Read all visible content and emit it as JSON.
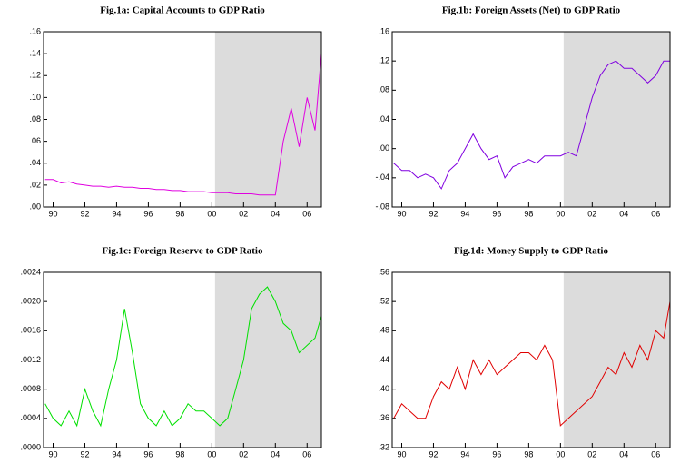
{
  "chart_data": [
    {
      "type": "line",
      "title": "Fig.1a: Capital Accounts to GDP Ratio",
      "x": [
        1989.5,
        1990,
        1990.5,
        1991,
        1991.5,
        1992,
        1992.5,
        1993,
        1993.5,
        1994,
        1994.5,
        1995,
        1995.5,
        1996,
        1996.5,
        1997,
        1997.5,
        1998,
        1998.5,
        1999,
        1999.5,
        2000,
        2000.5,
        2001,
        2001.5,
        2002,
        2002.5,
        2003,
        2003.5,
        2004,
        2004.5,
        2005,
        2005.5,
        2006,
        2006.5,
        2006.9
      ],
      "series": [
        {
          "color": "#e000e0",
          "values": [
            0.025,
            0.025,
            0.022,
            0.023,
            0.021,
            0.02,
            0.019,
            0.019,
            0.018,
            0.019,
            0.018,
            0.018,
            0.017,
            0.017,
            0.016,
            0.016,
            0.015,
            0.015,
            0.014,
            0.014,
            0.014,
            0.013,
            0.013,
            0.013,
            0.012,
            0.012,
            0.012,
            0.011,
            0.011,
            0.011,
            0.06,
            0.09,
            0.055,
            0.1,
            0.07,
            0.14
          ]
        }
      ],
      "xlim": [
        1989.4,
        2006.9
      ],
      "shade": [
        2000.2,
        2006.9
      ],
      "xticks": [
        {
          "value": 1990,
          "label": "90"
        },
        {
          "value": 1992,
          "label": "92"
        },
        {
          "value": 1994,
          "label": "94"
        },
        {
          "value": 1996,
          "label": "96"
        },
        {
          "value": 1998,
          "label": "98"
        },
        {
          "value": 2000,
          "label": "00"
        },
        {
          "value": 2002,
          "label": "02"
        },
        {
          "value": 2004,
          "label": "04"
        },
        {
          "value": 2006,
          "label": "06"
        }
      ],
      "ylim": [
        0,
        0.16
      ],
      "yticks": [
        {
          "value": 0,
          "label": ".00"
        },
        {
          "value": 0.02,
          "label": ".02"
        },
        {
          "value": 0.04,
          "label": ".04"
        },
        {
          "value": 0.06,
          "label": ".06"
        },
        {
          "value": 0.08,
          "label": ".08"
        },
        {
          "value": 0.1,
          "label": ".10"
        },
        {
          "value": 0.12,
          "label": ".12"
        },
        {
          "value": 0.14,
          "label": ".14"
        },
        {
          "value": 0.16,
          "label": ".16"
        }
      ]
    },
    {
      "type": "line",
      "title": "Fig.1b: Foreign Assets (Net) to GDP Ratio",
      "x": [
        1989.5,
        1990,
        1990.5,
        1991,
        1991.5,
        1992,
        1992.5,
        1993,
        1993.5,
        1994,
        1994.5,
        1995,
        1995.5,
        1996,
        1996.5,
        1997,
        1997.5,
        1998,
        1998.5,
        1999,
        1999.5,
        2000,
        2000.5,
        2001,
        2001.5,
        2002,
        2002.5,
        2003,
        2003.5,
        2004,
        2004.5,
        2005,
        2005.5,
        2006,
        2006.5,
        2006.9
      ],
      "series": [
        {
          "color": "#8000e0",
          "values": [
            -0.02,
            -0.03,
            -0.03,
            -0.04,
            -0.035,
            -0.04,
            -0.055,
            -0.03,
            -0.02,
            0.0,
            0.02,
            0.0,
            -0.015,
            -0.01,
            -0.04,
            -0.025,
            -0.02,
            -0.015,
            -0.02,
            -0.01,
            -0.01,
            -0.01,
            -0.005,
            -0.01,
            0.03,
            0.07,
            0.1,
            0.115,
            0.12,
            0.11,
            0.11,
            0.1,
            0.09,
            0.1,
            0.12,
            0.12
          ]
        }
      ],
      "xlim": [
        1989.4,
        2006.9
      ],
      "shade": [
        2000.2,
        2006.9
      ],
      "xticks": [
        {
          "value": 1990,
          "label": "90"
        },
        {
          "value": 1992,
          "label": "92"
        },
        {
          "value": 1994,
          "label": "94"
        },
        {
          "value": 1996,
          "label": "96"
        },
        {
          "value": 1998,
          "label": "98"
        },
        {
          "value": 2000,
          "label": "00"
        },
        {
          "value": 2002,
          "label": "02"
        },
        {
          "value": 2004,
          "label": "04"
        },
        {
          "value": 2006,
          "label": "06"
        }
      ],
      "ylim": [
        -0.08,
        0.16
      ],
      "yticks": [
        {
          "value": -0.08,
          "label": "-.08"
        },
        {
          "value": -0.04,
          "label": "-.04"
        },
        {
          "value": 0,
          "label": ".00"
        },
        {
          "value": 0.04,
          "label": ".04"
        },
        {
          "value": 0.08,
          "label": ".08"
        },
        {
          "value": 0.12,
          "label": ".12"
        },
        {
          "value": 0.16,
          "label": ".16"
        }
      ]
    },
    {
      "type": "line",
      "title": "Fig.1c: Foreign Reserve to GDP Ratio",
      "x": [
        1989.5,
        1990,
        1990.5,
        1991,
        1991.5,
        1992,
        1992.5,
        1993,
        1993.5,
        1994,
        1994.5,
        1995,
        1995.5,
        1996,
        1996.5,
        1997,
        1997.5,
        1998,
        1998.5,
        1999,
        1999.5,
        2000,
        2000.5,
        2001,
        2001.5,
        2002,
        2002.5,
        2003,
        2003.5,
        2004,
        2004.5,
        2005,
        2005.5,
        2006,
        2006.5,
        2006.9
      ],
      "series": [
        {
          "color": "#00e000",
          "values": [
            0.0006,
            0.0004,
            0.0003,
            0.0005,
            0.0003,
            0.0008,
            0.0005,
            0.0003,
            0.0008,
            0.0012,
            0.0019,
            0.0013,
            0.0006,
            0.0004,
            0.0003,
            0.0005,
            0.0003,
            0.0004,
            0.0006,
            0.0005,
            0.0005,
            0.0004,
            0.0003,
            0.0004,
            0.0008,
            0.0012,
            0.0019,
            0.0021,
            0.0022,
            0.002,
            0.0017,
            0.0016,
            0.0013,
            0.0014,
            0.0015,
            0.0018
          ]
        }
      ],
      "xlim": [
        1989.4,
        2006.9
      ],
      "shade": [
        2000.2,
        2006.9
      ],
      "xticks": [
        {
          "value": 1990,
          "label": "90"
        },
        {
          "value": 1992,
          "label": "92"
        },
        {
          "value": 1994,
          "label": "94"
        },
        {
          "value": 1996,
          "label": "96"
        },
        {
          "value": 1998,
          "label": "98"
        },
        {
          "value": 2000,
          "label": "00"
        },
        {
          "value": 2002,
          "label": "02"
        },
        {
          "value": 2004,
          "label": "04"
        },
        {
          "value": 2006,
          "label": "06"
        }
      ],
      "ylim": [
        0,
        0.0024
      ],
      "yticks": [
        {
          "value": 0,
          "label": ".0000"
        },
        {
          "value": 0.0004,
          "label": ".0004"
        },
        {
          "value": 0.0008,
          "label": ".0008"
        },
        {
          "value": 0.0012,
          "label": ".0012"
        },
        {
          "value": 0.0016,
          "label": ".0016"
        },
        {
          "value": 0.002,
          "label": ".0020"
        },
        {
          "value": 0.0024,
          "label": ".0024"
        }
      ]
    },
    {
      "type": "line",
      "title": "Fig.1d:  Money Supply to GDP Ratio",
      "x": [
        1989.5,
        1990,
        1990.5,
        1991,
        1991.5,
        1992,
        1992.5,
        1993,
        1993.5,
        1994,
        1994.5,
        1995,
        1995.5,
        1996,
        1996.5,
        1997,
        1997.5,
        1998,
        1998.5,
        1999,
        1999.5,
        2000,
        2000.5,
        2001,
        2001.5,
        2002,
        2002.5,
        2003,
        2003.5,
        2004,
        2004.5,
        2005,
        2005.5,
        2006,
        2006.5,
        2006.9
      ],
      "series": [
        {
          "color": "#e00000",
          "values": [
            0.36,
            0.38,
            0.37,
            0.36,
            0.36,
            0.39,
            0.41,
            0.4,
            0.43,
            0.4,
            0.44,
            0.42,
            0.44,
            0.42,
            0.43,
            0.44,
            0.45,
            0.45,
            0.44,
            0.46,
            0.44,
            0.35,
            0.36,
            0.37,
            0.38,
            0.39,
            0.41,
            0.43,
            0.42,
            0.45,
            0.43,
            0.46,
            0.44,
            0.48,
            0.47,
            0.52
          ]
        }
      ],
      "xlim": [
        1989.4,
        2006.9
      ],
      "shade": [
        2000.2,
        2006.9
      ],
      "xticks": [
        {
          "value": 1990,
          "label": "90"
        },
        {
          "value": 1992,
          "label": "92"
        },
        {
          "value": 1994,
          "label": "94"
        },
        {
          "value": 1996,
          "label": "96"
        },
        {
          "value": 1998,
          "label": "98"
        },
        {
          "value": 2000,
          "label": "00"
        },
        {
          "value": 2002,
          "label": "02"
        },
        {
          "value": 2004,
          "label": "04"
        },
        {
          "value": 2006,
          "label": "06"
        }
      ],
      "ylim": [
        0.32,
        0.56
      ],
      "yticks": [
        {
          "value": 0.32,
          "label": ".32"
        },
        {
          "value": 0.36,
          "label": ".36"
        },
        {
          "value": 0.4,
          "label": ".40"
        },
        {
          "value": 0.44,
          "label": ".44"
        },
        {
          "value": 0.48,
          "label": ".48"
        },
        {
          "value": 0.52,
          "label": ".52"
        },
        {
          "value": 0.56,
          "label": ".56"
        }
      ]
    }
  ]
}
